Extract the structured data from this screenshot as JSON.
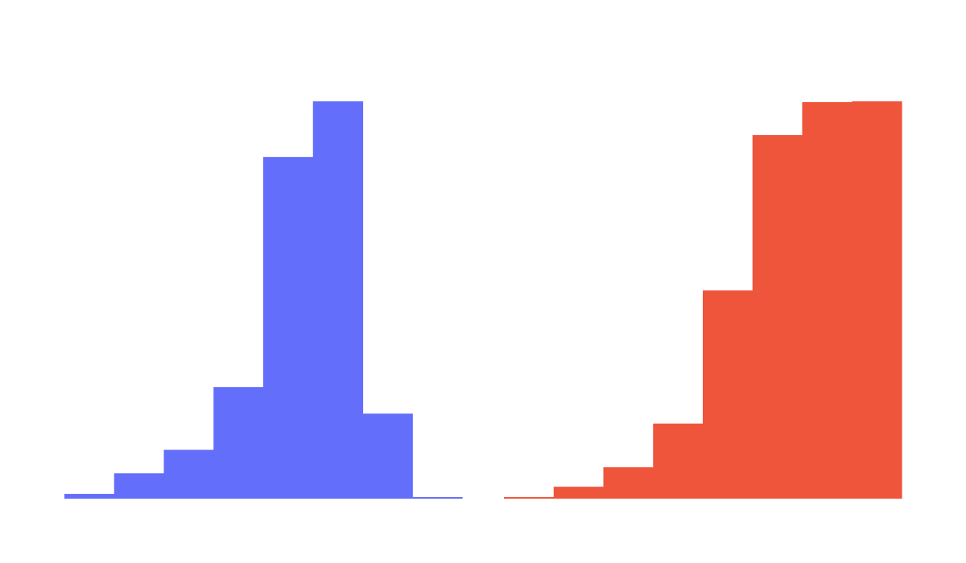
{
  "chart_data": [
    {
      "type": "bar",
      "color": "#636EFA",
      "values": [
        1.2,
        6.4,
        12.3,
        28.1,
        86.0,
        100.0,
        21.4,
        0.4
      ],
      "ylim": [
        0,
        100
      ]
    },
    {
      "type": "bar",
      "color": "#EF553B",
      "values": [
        0.4,
        3.0,
        7.9,
        18.9,
        52.4,
        91.5,
        99.8,
        100.0
      ],
      "ylim": [
        0,
        100
      ]
    }
  ]
}
